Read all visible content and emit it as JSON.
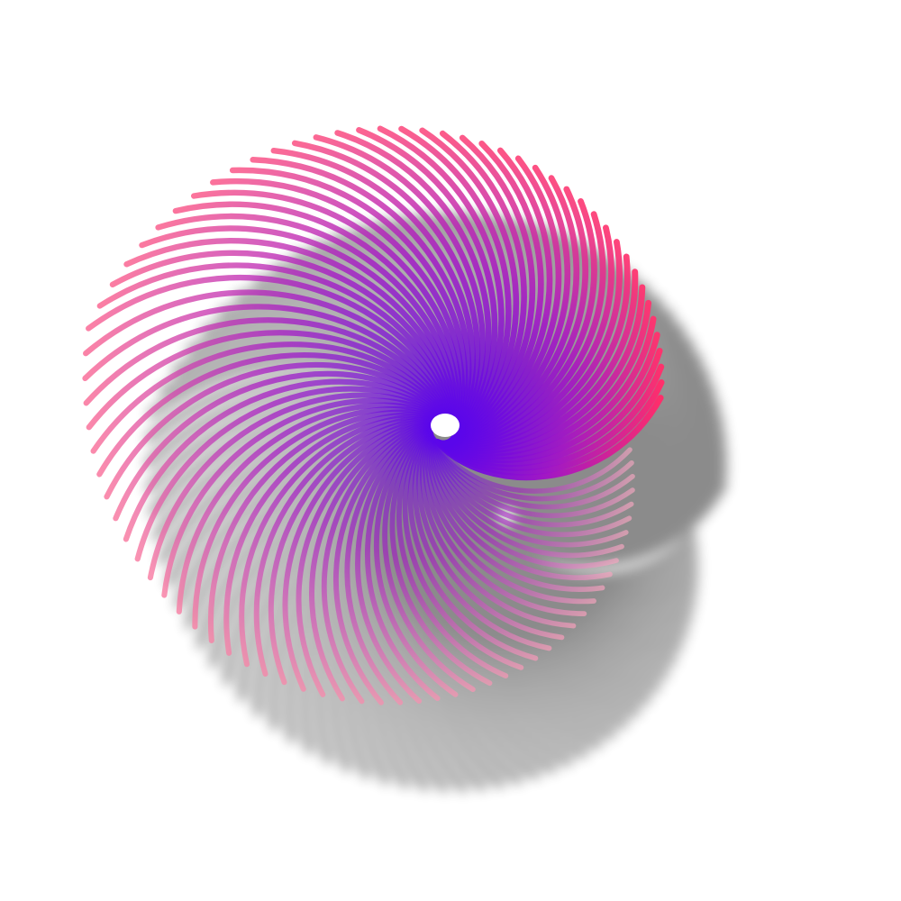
{
  "artwork": {
    "stroke_count": 90,
    "color_core": "#5a06ea",
    "color_mid": "#a412c6",
    "color_edge": "#ff2e6a",
    "color_tip_faded": "#f4a6c0",
    "shadow_color": "#000000",
    "background": "#ffffff"
  }
}
